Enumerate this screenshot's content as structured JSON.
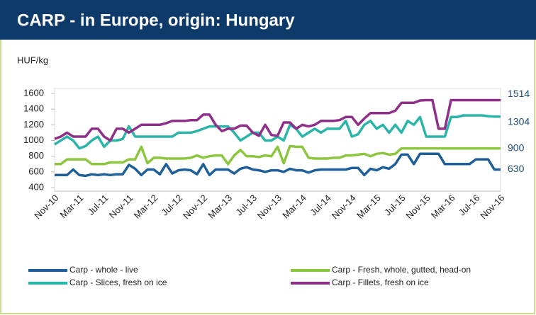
{
  "chart_data": {
    "type": "line",
    "title": "CARP - in Europe, origin: Hungary",
    "y_label": "HUF/kg",
    "categories": [
      "Nov-10",
      null,
      null,
      null,
      "Mar-11",
      null,
      null,
      null,
      "Jul-11",
      null,
      null,
      null,
      "Nov-11",
      null,
      null,
      null,
      "Mar-12",
      null,
      null,
      null,
      "Jul-12",
      null,
      null,
      null,
      "Nov-12",
      null,
      null,
      null,
      "Mar-13",
      null,
      null,
      null,
      "Jul-13",
      null,
      null,
      null,
      "Nov-13",
      null,
      null,
      null,
      "Mar-14",
      null,
      null,
      null,
      "Jul-14",
      null,
      null,
      null,
      "Nov-14",
      null,
      null,
      null,
      "Mar-15",
      null,
      null,
      null,
      "Jul-15",
      null,
      null,
      null,
      "Nov-15",
      null,
      null,
      null,
      "Mar-16",
      null,
      null,
      null,
      "Jul-16",
      null,
      null,
      null,
      "Nov-16"
    ],
    "series": [
      {
        "name": "Carp - whole - live",
        "color": "#1f5f99",
        "values": [
          560,
          560,
          560,
          630,
          560,
          550,
          570,
          560,
          570,
          560,
          570,
          570,
          690,
          640,
          560,
          630,
          630,
          570,
          700,
          580,
          620,
          630,
          620,
          570,
          700,
          560,
          630,
          630,
          630,
          580,
          640,
          660,
          630,
          620,
          600,
          620,
          620,
          600,
          640,
          620,
          620,
          590,
          620,
          630,
          630,
          630,
          630,
          630,
          650,
          650,
          560,
          640,
          620,
          660,
          640,
          700,
          820,
          820,
          700,
          830,
          830,
          830,
          830,
          700,
          700,
          700,
          700,
          700,
          760,
          760,
          760,
          630,
          630
        ]
      },
      {
        "name": "Carp - Fresh, whole, gutted, head-on",
        "color": "#8cc63f",
        "values": [
          700,
          700,
          760,
          760,
          760,
          760,
          700,
          700,
          700,
          720,
          720,
          720,
          760,
          760,
          920,
          710,
          780,
          780,
          770,
          770,
          770,
          770,
          780,
          810,
          780,
          800,
          810,
          810,
          700,
          810,
          880,
          800,
          800,
          790,
          810,
          800,
          920,
          710,
          930,
          920,
          920,
          780,
          770,
          770,
          770,
          780,
          780,
          810,
          810,
          820,
          830,
          800,
          830,
          840,
          820,
          830,
          900,
          900,
          900,
          900,
          900,
          900,
          900,
          900,
          900,
          900,
          900,
          900,
          900,
          900,
          900,
          900,
          900
        ]
      },
      {
        "name": "Carp - Slices, fresh on ice",
        "color": "#2bb5a8",
        "values": [
          950,
          1000,
          1050,
          1000,
          900,
          930,
          1000,
          1050,
          920,
          1000,
          1000,
          1020,
          1180,
          1050,
          1050,
          1050,
          1050,
          1050,
          1050,
          1050,
          1100,
          1100,
          1100,
          1120,
          1150,
          1180,
          1180,
          1180,
          1180,
          1100,
          1000,
          1050,
          1100,
          1100,
          1000,
          1000,
          1050,
          1000,
          1200,
          1150,
          1050,
          1100,
          1150,
          1100,
          1150,
          1150,
          1150,
          1250,
          1050,
          1080,
          1200,
          1250,
          1150,
          1200,
          1100,
          1200,
          1100,
          1250,
          1200,
          1300,
          1050,
          1050,
          1050,
          1050,
          1300,
          1300,
          1320,
          1320,
          1320,
          1320,
          1310,
          1304,
          1304
        ]
      },
      {
        "name": "Carp - Fillets, fresh on ice",
        "color": "#8e2f8a",
        "values": [
          1020,
          1050,
          1100,
          1050,
          1050,
          1050,
          1150,
          1150,
          1050,
          1000,
          1150,
          1150,
          1100,
          1150,
          1200,
          1200,
          1200,
          1200,
          1220,
          1250,
          1250,
          1250,
          1260,
          1260,
          1330,
          1330,
          1200,
          1120,
          1150,
          1150,
          1190,
          1190,
          1100,
          1060,
          1200,
          1070,
          1060,
          1230,
          1230,
          1150,
          1200,
          1180,
          1200,
          1250,
          1250,
          1250,
          1260,
          1300,
          1300,
          1200,
          1280,
          1350,
          1350,
          1350,
          1350,
          1380,
          1480,
          1480,
          1480,
          1510,
          1514,
          1514,
          1150,
          1150,
          1514,
          1514,
          1514,
          1514,
          1514,
          1514,
          1514,
          1514,
          1514
        ]
      }
    ],
    "ylim": [
      400,
      1600
    ],
    "yticks": [
      400,
      600,
      800,
      1000,
      1200,
      1400,
      1600
    ],
    "grid": false
  }
}
